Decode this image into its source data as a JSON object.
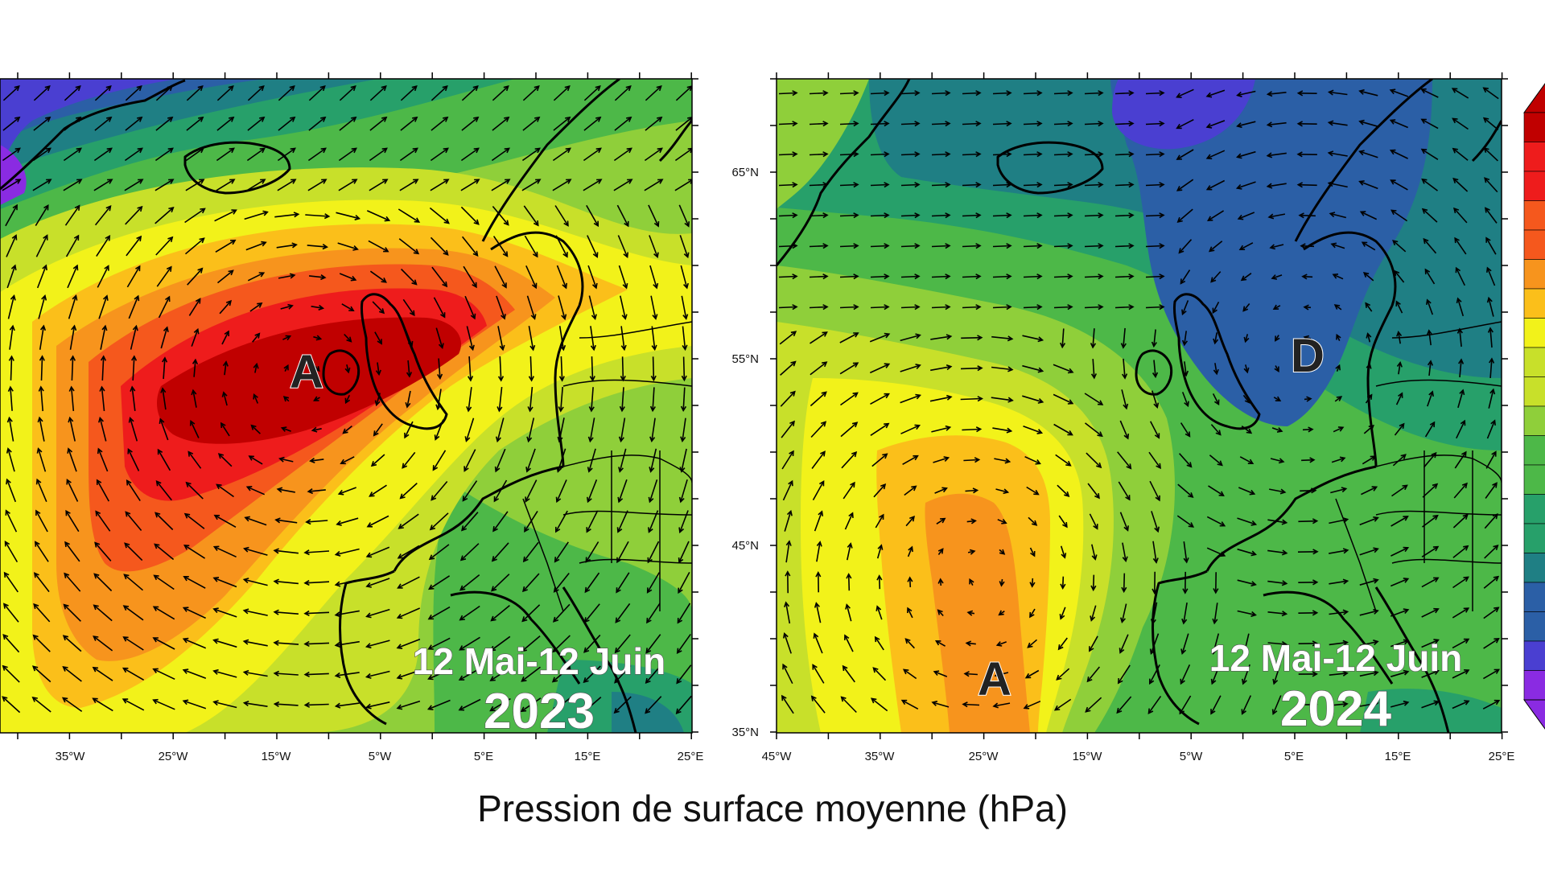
{
  "caption": "Pression de surface moyenne (hPa)",
  "colors": {
    "dark_red": "#c00000",
    "red": "#ee1c1c",
    "orange_red": "#f5581d",
    "orange": "#f7941d",
    "light_orange": "#fbbf1a",
    "yellow": "#f2f21a",
    "yellow_green": "#c8e02a",
    "light_green": "#8fcf3a",
    "green": "#4db848",
    "teal_green": "#27a06a",
    "teal": "#1f7f84",
    "blue": "#2b5fa6",
    "violet": "#4a3fd1",
    "purple": "#8a2be2"
  },
  "maps": [
    {
      "id": "2023",
      "date_range": "12 Mai-12 Juin",
      "year": "2023",
      "lon_labels": [
        "35°W",
        "25°W",
        "15°W",
        "5°W",
        "5°E",
        "15°E",
        "25°E"
      ],
      "lat_labels": [],
      "pressure_centers": [
        {
          "label": "A",
          "lon": -14,
          "lat": 55
        }
      ]
    },
    {
      "id": "2024",
      "date_range": "12 Mai-12 Juin",
      "year": "2024",
      "lon_labels": [
        "45°W",
        "35°W",
        "25°W",
        "15°W",
        "5°W",
        "5°E",
        "15°E",
        "25°E"
      ],
      "lat_labels": [
        "35°N",
        "45°N",
        "55°N",
        "65°N"
      ],
      "pressure_centers": [
        {
          "label": "D",
          "lon": 6,
          "lat": 55
        },
        {
          "label": "A",
          "lon": -25,
          "lat": 38
        }
      ]
    }
  ]
}
